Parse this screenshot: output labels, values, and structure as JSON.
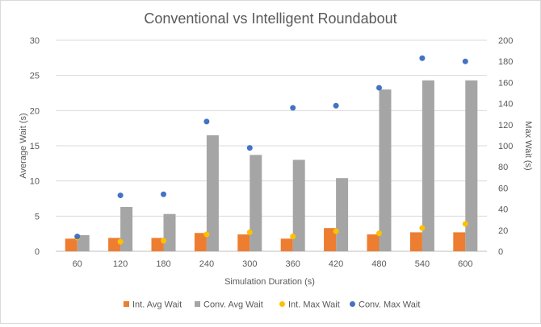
{
  "chart_data": {
    "type": "bar",
    "title": "Conventional vs Intelligent Roundabout",
    "xlabel": "Simulation Duration (s)",
    "ylabel": "Average Wait (s)",
    "y2label": "Max Wait (s)",
    "categories": [
      "60",
      "120",
      "180",
      "240",
      "300",
      "360",
      "420",
      "480",
      "540",
      "600"
    ],
    "ylim": [
      0,
      30
    ],
    "y_ticks": [
      "0",
      "5",
      "10",
      "15",
      "20",
      "25",
      "30"
    ],
    "y2lim": [
      0,
      200
    ],
    "y2_ticks": [
      "0",
      "20",
      "40",
      "60",
      "80",
      "100",
      "120",
      "140",
      "160",
      "180",
      "200"
    ],
    "grid": true,
    "legend_position": "bottom",
    "series": [
      {
        "name": "Int. Avg Wait",
        "kind": "bar",
        "axis": "left",
        "color": "#ed7d31",
        "values": [
          1.8,
          1.9,
          1.9,
          2.6,
          2.4,
          1.8,
          3.3,
          2.4,
          2.7,
          2.7
        ]
      },
      {
        "name": "Conv. Avg Wait",
        "kind": "bar",
        "axis": "left",
        "color": "#a5a5a5",
        "values": [
          2.3,
          6.3,
          5.3,
          16.5,
          13.7,
          13.0,
          10.4,
          23.0,
          24.3,
          24.3
        ]
      },
      {
        "name": "Int. Max Wait",
        "kind": "scatter",
        "axis": "right",
        "color": "#ffc000",
        "values": [
          13,
          9,
          10,
          16,
          18,
          14,
          19,
          17,
          22,
          26
        ]
      },
      {
        "name": "Conv. Max Wait",
        "kind": "scatter",
        "axis": "right",
        "color": "#4472c4",
        "values": [
          14,
          53,
          54,
          123,
          98,
          136,
          138,
          155,
          183,
          180
        ]
      }
    ]
  }
}
